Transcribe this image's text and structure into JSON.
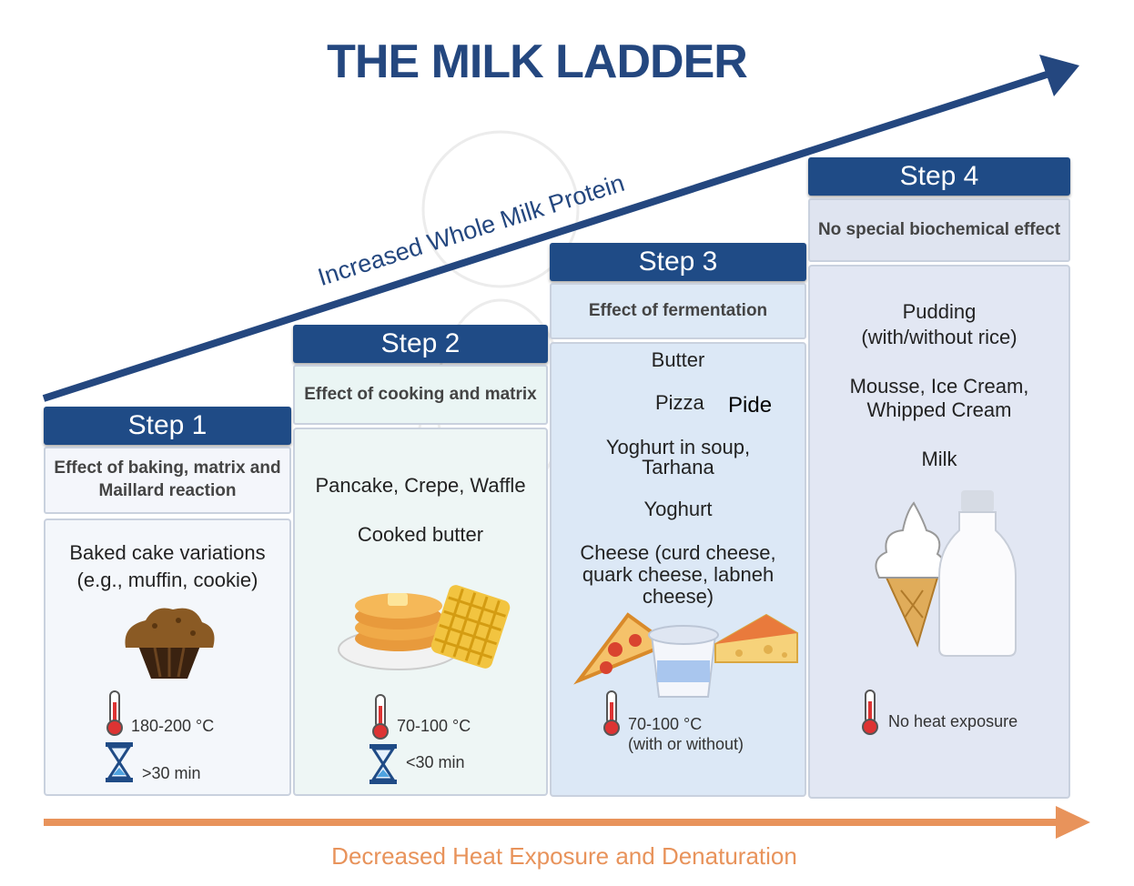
{
  "title": "THE MILK LADDER",
  "arrow_top_label": "Increased Whole Milk Protein",
  "arrow_bottom_label": "Decreased Heat Exposure and Denaturation",
  "colors": {
    "navy": "#1f4b86",
    "orange": "#e8935b",
    "panel_bg": "#eef3fa"
  },
  "steps": [
    {
      "heading": "Step 1",
      "effect": "Effect of baking, matrix and Maillard reaction",
      "foods": [
        "Baked cake variations",
        "(e.g., muffin, cookie)"
      ],
      "temperature": "180-200 °C",
      "time": ">30 min",
      "icons": [
        "muffin-icon",
        "thermometer-icon",
        "hourglass-icon"
      ]
    },
    {
      "heading": "Step 2",
      "effect": "Effect of cooking and matrix",
      "foods": [
        "Pancake, Crepe, Waffle",
        "Cooked butter"
      ],
      "temperature": "70-100 °C",
      "time": "<30 min",
      "icons": [
        "pancake-icon",
        "waffle-icon",
        "thermometer-icon",
        "hourglass-icon"
      ]
    },
    {
      "heading": "Step 3",
      "effect": "Effect of fermentation",
      "foods": [
        "Butter",
        "Pizza",
        "Pide",
        "Yoghurt in soup,",
        "Tarhana",
        "Yoghurt",
        "Cheese (curd cheese,",
        "quark cheese, labneh",
        "cheese)"
      ],
      "temperature": "70-100 °C",
      "time": "(with or without)",
      "icons": [
        "pizza-icon",
        "yoghurt-icon",
        "cheese-icon",
        "thermometer-icon"
      ]
    },
    {
      "heading": "Step 4",
      "effect": "No special biochemical effect",
      "foods": [
        "Pudding",
        "(with/without rice)",
        "Mousse, Ice Cream,",
        "Whipped Cream",
        "Milk"
      ],
      "temperature": "No  heat exposure",
      "icons": [
        "ice-cream-icon",
        "milk-bottle-icon",
        "thermometer-icon"
      ]
    }
  ]
}
